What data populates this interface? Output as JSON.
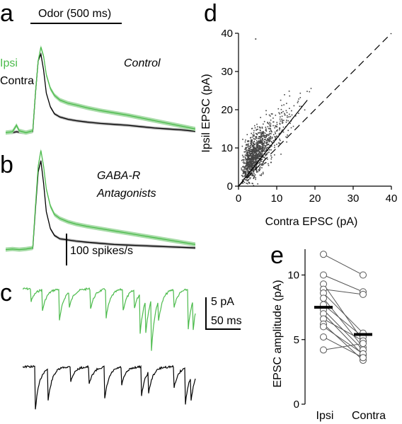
{
  "colors": {
    "ipsi": "#4cbb4c",
    "ipsi_band": "#a8dca8",
    "contra": "#000000",
    "contra_band": "#b0b0b0"
  },
  "panels": {
    "a": {
      "letter": "a",
      "stimulus_label": "Odor (500 ms)",
      "legend_ipsi": "Ipsi",
      "legend_contra": "Contra",
      "condition": "Control"
    },
    "b": {
      "letter": "b",
      "condition_line1": "GABA-R",
      "condition_line2": "Antagonists",
      "scalebar_label": "100 spikes/s"
    },
    "c": {
      "letter": "c",
      "scalebar_y_label": "5 pA",
      "scalebar_x_label": "50 ms"
    },
    "d": {
      "letter": "d"
    },
    "e": {
      "letter": "e"
    }
  },
  "chart_data": [
    {
      "type": "line",
      "panel": "a",
      "title": "Control",
      "x_unit": "ms",
      "series": [
        {
          "name": "Ipsi",
          "x": [
            -200,
            -150,
            -120,
            -100,
            -50,
            0,
            20,
            40,
            60,
            80,
            100,
            130,
            160,
            200,
            260,
            320,
            400,
            500,
            600,
            700,
            800,
            900,
            1000,
            1100,
            1200
          ],
          "y": [
            4,
            6,
            20,
            8,
            4,
            8,
            90,
            160,
            190,
            170,
            130,
            100,
            85,
            75,
            68,
            64,
            58,
            52,
            47,
            42,
            36,
            30,
            24,
            18,
            12
          ]
        },
        {
          "name": "Contra",
          "x": [
            -200,
            -150,
            -120,
            -100,
            -50,
            0,
            20,
            40,
            60,
            80,
            100,
            130,
            160,
            200,
            260,
            320,
            400,
            500,
            600,
            700,
            800,
            900,
            1000,
            1100,
            1200
          ],
          "y": [
            3,
            4,
            6,
            5,
            3,
            6,
            90,
            160,
            175,
            140,
            90,
            60,
            45,
            38,
            33,
            30,
            27,
            24,
            22,
            20,
            17,
            14,
            12,
            10,
            7
          ]
        }
      ]
    },
    {
      "type": "line",
      "panel": "b",
      "title": "GABA-R Antagonists",
      "x_unit": "ms",
      "series": [
        {
          "name": "Ipsi",
          "x": [
            -200,
            -150,
            -100,
            -50,
            0,
            20,
            40,
            60,
            80,
            100,
            130,
            160,
            200,
            260,
            320,
            400,
            500,
            600,
            700,
            800,
            900,
            1000,
            1100,
            1200
          ],
          "y": [
            3,
            4,
            3,
            4,
            6,
            80,
            150,
            178,
            150,
            110,
            80,
            65,
            58,
            52,
            48,
            44,
            40,
            36,
            32,
            28,
            24,
            20,
            16,
            12
          ]
        },
        {
          "name": "Contra",
          "x": [
            -200,
            -150,
            -100,
            -50,
            0,
            20,
            40,
            60,
            80,
            100,
            130,
            160,
            200,
            260,
            320,
            400,
            500,
            600,
            700,
            800,
            900,
            1000,
            1100,
            1200
          ],
          "y": [
            3,
            3,
            3,
            4,
            5,
            75,
            140,
            160,
            120,
            70,
            40,
            28,
            22,
            20,
            18,
            16,
            14,
            12,
            11,
            10,
            9,
            8,
            7,
            6
          ]
        }
      ]
    },
    {
      "type": "scatter",
      "panel": "d",
      "xlabel": "Contra EPSC (pA)",
      "ylabel": "Ipsil EPSC (pA)",
      "xlim": [
        0,
        40
      ],
      "ylim": [
        0,
        40
      ],
      "xticks": [
        "0",
        "10",
        "20",
        "30",
        "40"
      ],
      "yticks": [
        "0",
        "10",
        "20",
        "30",
        "40"
      ],
      "n_points_approx": 1200,
      "distribution": {
        "x_mode": 4.5,
        "y_mode": 6.5,
        "x_max": 19,
        "y_max_outlier": 38.5
      },
      "fit_line": {
        "x": [
          0,
          18
        ],
        "y": [
          0,
          22.5
        ]
      },
      "unity_line": {
        "x": [
          0,
          40
        ],
        "y": [
          0,
          40
        ]
      },
      "outliers": [
        {
          "x": 4.5,
          "y": 38.5
        }
      ]
    },
    {
      "type": "scatter",
      "panel": "e",
      "ylabel": "EPSC amplitude (pA)",
      "ylim": [
        0,
        12
      ],
      "yticks": [
        "0",
        "5",
        "10"
      ],
      "categories": [
        "Ipsi",
        "Contra"
      ],
      "pairs": [
        [
          11.6,
          10.0
        ],
        [
          10.0,
          8.7
        ],
        [
          9.3,
          4.9
        ],
        [
          8.9,
          8.5
        ],
        [
          8.6,
          5.5
        ],
        [
          8.2,
          4.4
        ],
        [
          7.7,
          5.2
        ],
        [
          7.3,
          4.2
        ],
        [
          7.0,
          3.8
        ],
        [
          6.6,
          4.9
        ],
        [
          6.2,
          3.4
        ],
        [
          6.0,
          3.9
        ],
        [
          5.2,
          3.6
        ],
        [
          4.2,
          4.7
        ]
      ],
      "means": [
        7.5,
        5.4
      ]
    }
  ]
}
